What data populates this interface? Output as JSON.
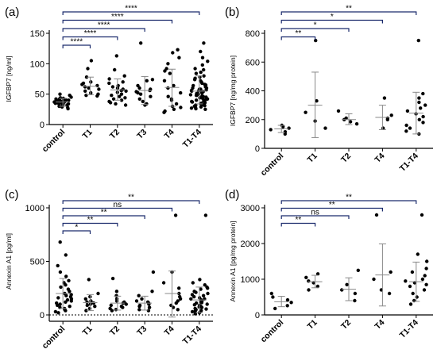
{
  "chart_data": [
    {
      "panel": "(a)",
      "type": "scatter",
      "ylabel": "IGFBP7 [ng/ml]",
      "ylim": [
        0,
        150
      ],
      "yticks": [
        0,
        50,
        100,
        150
      ],
      "categories": [
        "control",
        "T1",
        "T2",
        "T3",
        "T4",
        "T1-T4"
      ],
      "summary": [
        {
          "mean": 37,
          "sd_low": 30,
          "sd_high": 43
        },
        {
          "mean": 63,
          "sd_low": 49,
          "sd_high": 78
        },
        {
          "mean": 57,
          "sd_low": 40,
          "sd_high": 75
        },
        {
          "mean": 56,
          "sd_low": 33,
          "sd_high": 79
        },
        {
          "mean": 61,
          "sd_low": 30,
          "sd_high": 91
        },
        {
          "mean": 55,
          "sd_low": 34,
          "sd_high": 80
        }
      ],
      "points": [
        [
          32,
          35,
          38,
          40,
          36,
          34,
          42,
          45,
          30,
          28,
          37,
          39,
          41,
          33,
          36,
          44,
          38,
          35,
          31,
          40,
          26,
          48,
          50,
          36,
          39,
          34,
          37,
          43,
          29,
          42
        ],
        [
          105,
          92,
          78,
          70,
          68,
          66,
          64,
          62,
          60,
          58,
          55,
          52,
          50,
          47,
          48
        ],
        [
          113,
          90,
          80,
          75,
          70,
          68,
          64,
          62,
          60,
          58,
          56,
          55,
          53,
          50,
          48,
          46,
          44,
          42,
          40,
          38,
          36,
          34,
          32
        ],
        [
          134,
          74,
          72,
          64,
          60,
          58,
          56,
          54,
          52,
          50,
          46,
          42,
          38,
          34,
          32
        ],
        [
          123,
          118,
          110,
          100,
          92,
          88,
          84,
          72,
          64,
          60,
          52,
          46,
          42,
          40,
          34,
          30,
          28,
          25,
          22,
          20
        ],
        [
          134,
          120,
          110,
          104,
          98,
          92,
          90,
          86,
          84,
          80,
          78,
          76,
          74,
          72,
          70,
          68,
          66,
          64,
          62,
          60,
          60,
          58,
          57,
          56,
          55,
          54,
          53,
          52,
          51,
          50,
          49,
          48,
          47,
          46,
          45,
          44,
          43,
          42,
          41,
          40,
          39,
          38,
          37,
          36,
          35,
          34,
          33,
          32,
          31,
          30,
          29,
          28,
          27,
          26,
          25,
          45,
          55,
          65,
          48,
          58
        ]
      ],
      "comparisons": [
        {
          "to": "T1",
          "label": "****"
        },
        {
          "to": "T2",
          "label": "****"
        },
        {
          "to": "T3",
          "label": "****"
        },
        {
          "to": "T4",
          "label": "****"
        },
        {
          "to": "T1-T4",
          "label": "****"
        }
      ]
    },
    {
      "panel": "(b)",
      "type": "scatter",
      "ylabel": "IGFBP7 [ng/mg protein]",
      "ylim": [
        0,
        800
      ],
      "yticks": [
        0,
        200,
        400,
        600,
        800
      ],
      "categories": [
        "control",
        "T1",
        "T2",
        "T4",
        "T1-T4"
      ],
      "summary": [
        {
          "mean": 135,
          "sd_low": 110,
          "sd_high": 160
        },
        {
          "mean": 300,
          "sd_low": 75,
          "sd_high": 530
        },
        {
          "mean": 200,
          "sd_low": 165,
          "sd_high": 240
        },
        {
          "mean": 215,
          "sd_low": 130,
          "sd_high": 300
        },
        {
          "mean": 245,
          "sd_low": 100,
          "sd_high": 390
        }
      ],
      "points": [
        [
          160,
          150,
          140,
          130,
          115,
          100
        ],
        [
          750,
          330,
          250,
          190,
          140
        ],
        [
          260,
          210,
          200,
          185,
          170
        ],
        [
          350,
          230,
          210,
          200,
          140
        ],
        [
          750,
          380,
          350,
          320,
          300,
          280,
          260,
          240,
          220,
          200,
          180,
          160,
          140,
          120,
          100
        ]
      ],
      "comparisons": [
        {
          "to": "T1",
          "label": "**"
        },
        {
          "to": "T2",
          "label": "*"
        },
        {
          "to": "T4",
          "label": "*"
        },
        {
          "to": "T1-T4",
          "label": "**"
        }
      ]
    },
    {
      "panel": "(c)",
      "type": "scatter",
      "ylabel": "Annexin A1 [pg/ml]",
      "ylim": [
        0,
        1000
      ],
      "yticks": [
        0,
        500,
        1000
      ],
      "categories": [
        "control",
        "T1",
        "T2",
        "T3",
        "T4",
        "T1-T4"
      ],
      "summary": [
        {
          "mean": 200,
          "sd_low": 60,
          "sd_high": 340
        },
        {
          "mean": 115,
          "sd_low": 40,
          "sd_high": 190
        },
        {
          "mean": 110,
          "sd_low": 45,
          "sd_high": 175
        },
        {
          "mean": 110,
          "sd_low": 45,
          "sd_high": 175
        },
        {
          "mean": 200,
          "sd_low": -20,
          "sd_high": 410
        },
        {
          "mean": 140,
          "sd_low": 20,
          "sd_high": 260
        }
      ],
      "points": [
        [
          680,
          560,
          460,
          400,
          360,
          320,
          300,
          280,
          260,
          240,
          220,
          200,
          190,
          180,
          170,
          160,
          150,
          140,
          130,
          120,
          110,
          100,
          90,
          80,
          70,
          60,
          50,
          40,
          30,
          20
        ],
        [
          330,
          200,
          170,
          150,
          130,
          120,
          110,
          100,
          90,
          80,
          60,
          40
        ],
        [
          340,
          220,
          180,
          150,
          130,
          120,
          110,
          100,
          90,
          80,
          70,
          60,
          50,
          40
        ],
        [
          400,
          220,
          180,
          150,
          130,
          120,
          110,
          100,
          90,
          80,
          70,
          50,
          40
        ],
        [
          930,
          400,
          300,
          250,
          200,
          170,
          150,
          130,
          110,
          90,
          70,
          50
        ],
        [
          930,
          330,
          300,
          280,
          260,
          240,
          220,
          200,
          190,
          180,
          170,
          160,
          150,
          140,
          130,
          120,
          110,
          100,
          90,
          80,
          70,
          60,
          50,
          40,
          30,
          20,
          10,
          250,
          210,
          150,
          115,
          95,
          75,
          55,
          35
        ]
      ],
      "comparisons": [
        {
          "to": "T1",
          "label": "*"
        },
        {
          "to": "T2",
          "label": "**"
        },
        {
          "to": "T3",
          "label": "**"
        },
        {
          "to": "T4",
          "label": "ns"
        },
        {
          "to": "T1-T4",
          "label": "**"
        }
      ]
    },
    {
      "panel": "(d)",
      "type": "scatter",
      "ylabel": "Annexin A1 [pg/mg protein]",
      "ylim": [
        0,
        3000
      ],
      "yticks": [
        0,
        1000,
        2000,
        3000
      ],
      "categories": [
        "control",
        "T1",
        "T2",
        "T4",
        "T1-T4"
      ],
      "summary": [
        {
          "mean": 370,
          "sd_low": 230,
          "sd_high": 520
        },
        {
          "mean": 930,
          "sd_low": 760,
          "sd_high": 1110
        },
        {
          "mean": 720,
          "sd_low": 400,
          "sd_high": 1040
        },
        {
          "mean": 1120,
          "sd_low": 250,
          "sd_high": 1990
        },
        {
          "mean": 930,
          "sd_low": 380,
          "sd_high": 1480
        }
      ],
      "points": [
        [
          600,
          500,
          420,
          350,
          260,
          180
        ],
        [
          1150,
          1050,
          950,
          900,
          800,
          700
        ],
        [
          1250,
          850,
          700,
          600,
          400
        ],
        [
          2800,
          1200,
          1000,
          700,
          600
        ],
        [
          2800,
          1700,
          1500,
          1300,
          1200,
          1100,
          1000,
          950,
          900,
          850,
          800,
          700,
          600,
          500,
          400,
          300
        ]
      ],
      "comparisons": [
        {
          "to": "T1",
          "label": "**"
        },
        {
          "to": "T2",
          "label": "ns"
        },
        {
          "to": "T4",
          "label": "**"
        },
        {
          "to": "T1-T4",
          "label": "**"
        }
      ]
    }
  ]
}
